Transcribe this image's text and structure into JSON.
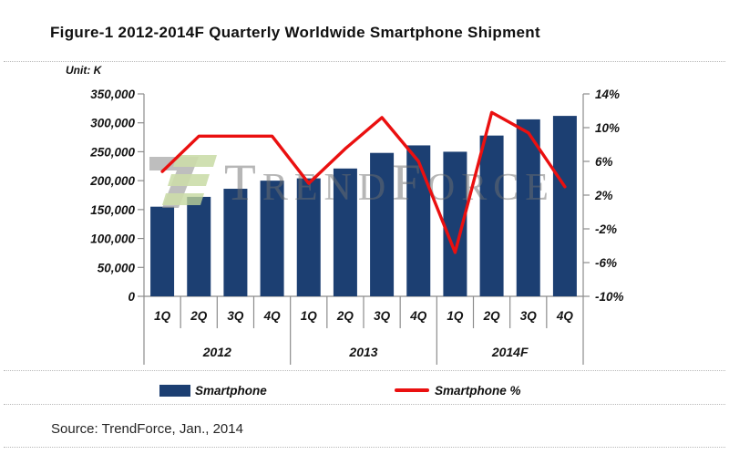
{
  "title": "Figure-1 2012-2014F Quarterly Worldwide Smartphone Shipment",
  "unit_label": "Unit: K",
  "source": "Source: TrendForce, Jan., 2014",
  "watermark": {
    "name": "TrendForce",
    "parts": [
      "T",
      "REND",
      "F",
      "ORCE"
    ]
  },
  "legend": [
    {
      "label": "Smartphone",
      "type": "bar",
      "color": "#1c3f72"
    },
    {
      "label": "Smartphone %",
      "type": "line",
      "color": "#ea1010"
    }
  ],
  "chart_data": {
    "type": "bar+line",
    "title": "Figure-1 2012-2014F Quarterly Worldwide Smartphone Shipment",
    "unit": "K",
    "categories": [
      "1Q",
      "2Q",
      "3Q",
      "4Q",
      "1Q",
      "2Q",
      "3Q",
      "4Q",
      "1Q",
      "2Q",
      "3Q",
      "4Q"
    ],
    "year_groups": [
      {
        "label": "2012",
        "span": 4
      },
      {
        "label": "2013",
        "span": 4
      },
      {
        "label": "2014F",
        "span": 4
      }
    ],
    "series": [
      {
        "name": "Smartphone",
        "type": "bar",
        "axis": "left",
        "color": "#1c3f72",
        "values": [
          155000,
          172000,
          186000,
          200000,
          204000,
          221000,
          248000,
          261000,
          250000,
          278000,
          306000,
          312000
        ]
      },
      {
        "name": "Smartphone %",
        "type": "line",
        "axis": "right",
        "color": "#ea1010",
        "values_pct": [
          4.8,
          9.0,
          9.0,
          9.0,
          3.4,
          7.5,
          11.2,
          6.0,
          -4.8,
          11.8,
          9.4,
          3.0
        ]
      }
    ],
    "left_axis": {
      "min": 0,
      "max": 350000,
      "step": 50000,
      "tick_labels": [
        "350,000",
        "300,000",
        "250,000",
        "200,000",
        "150,000",
        "100,000",
        "50,000",
        "0"
      ]
    },
    "right_axis": {
      "min": -10,
      "max": 14,
      "step": 4,
      "tick_labels": [
        "14%",
        "10%",
        "6%",
        "2%",
        "-2%",
        "-6%",
        "-10%"
      ]
    },
    "grid": false,
    "legend_position": "bottom"
  }
}
